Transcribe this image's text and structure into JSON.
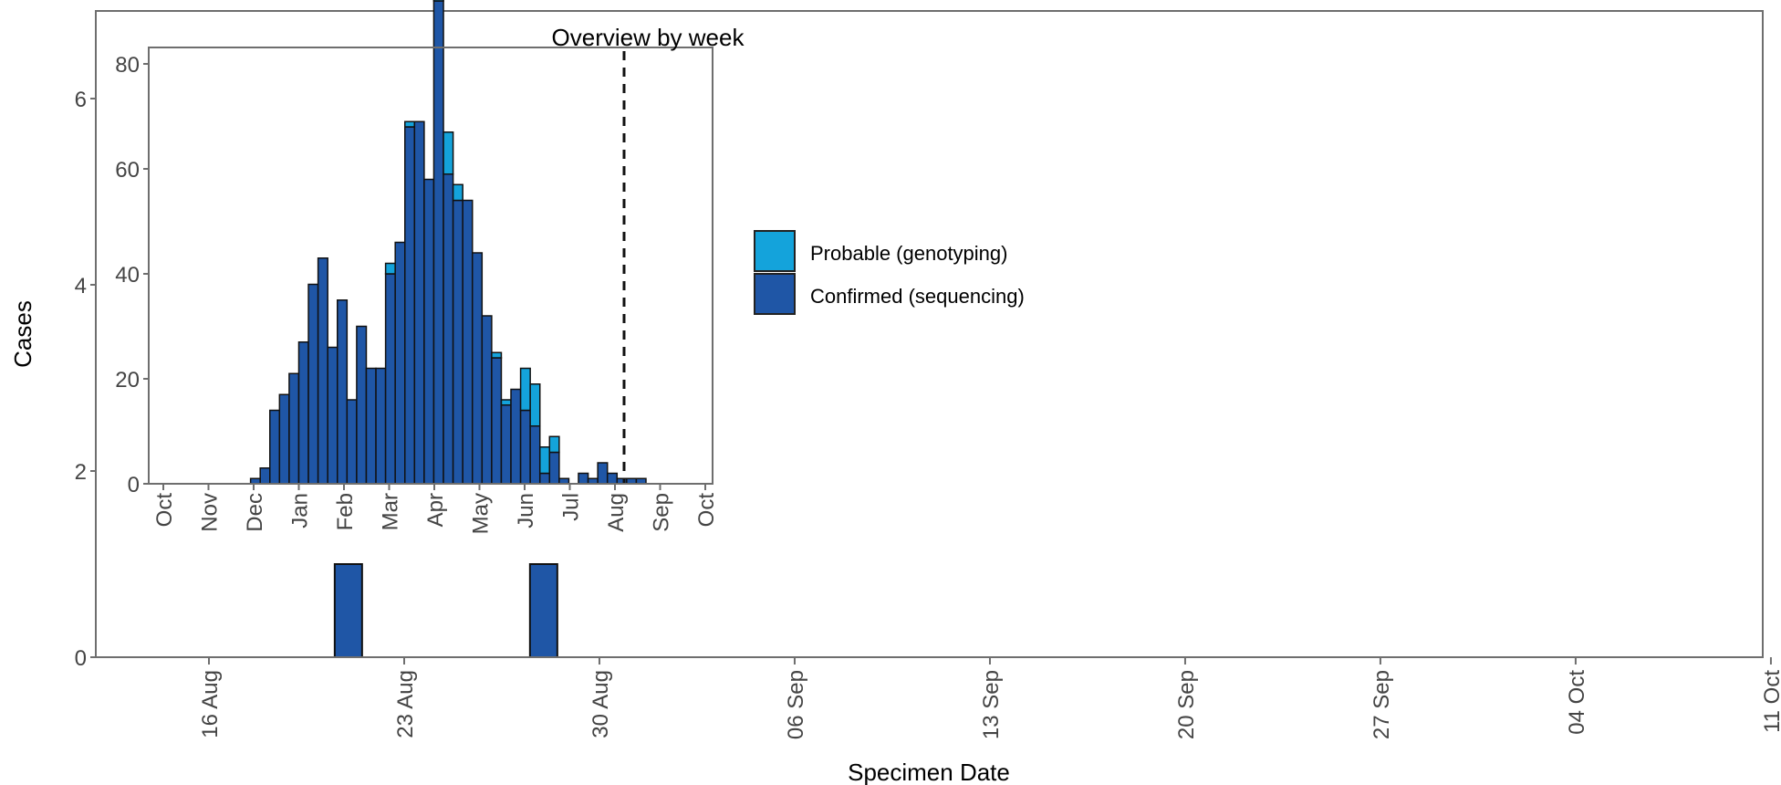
{
  "chart_data": [
    {
      "type": "bar",
      "xlabel": "Specimen Date",
      "ylabel": "Cases",
      "x_ticks": [
        "16 Aug",
        "23 Aug",
        "30 Aug",
        "06 Sep",
        "13 Sep",
        "20 Sep",
        "27 Sep",
        "04 Oct",
        "11 Oct"
      ],
      "y_ticks": [
        "0",
        "2",
        "4",
        "6"
      ],
      "ylim": [
        0,
        7
      ],
      "series": [
        {
          "name": "Confirmed (sequencing)",
          "color": "#1f56a6",
          "bars": [
            {
              "x": "2021-08-21",
              "value": 1
            },
            {
              "x": "2021-08-28",
              "value": 1
            }
          ]
        }
      ],
      "legend": {
        "placement": "right",
        "items": [
          {
            "label": "Probable (genotyping)",
            "color": "#14a3db"
          },
          {
            "label": "Confirmed (sequencing)",
            "color": "#1f56a6"
          }
        ]
      }
    },
    {
      "type": "bar",
      "title": "Overview by week",
      "stacked": true,
      "x_ticks": [
        "Oct",
        "Nov",
        "Dec",
        "Jan",
        "Feb",
        "Mar",
        "Apr",
        "May",
        "Jun",
        "Jul",
        "Aug",
        "Sep",
        "Oct"
      ],
      "y_ticks": [
        "0",
        "20",
        "40",
        "60",
        "80"
      ],
      "ylim": [
        0,
        80
      ],
      "reference_line": "dashed vertical line in mid August",
      "confirmed": [
        0,
        0,
        0,
        0,
        0,
        0,
        0,
        0,
        0,
        1,
        3,
        14,
        17,
        21,
        27,
        38,
        43,
        26,
        35,
        16,
        30,
        22,
        22,
        40,
        46,
        68,
        69,
        58,
        92,
        59,
        54,
        54,
        44,
        32,
        24,
        15,
        18,
        14,
        11,
        2,
        6,
        1,
        0,
        2,
        1,
        4,
        2,
        1,
        1,
        1,
        0,
        0,
        0,
        0,
        0
      ],
      "probable": [
        0,
        0,
        0,
        0,
        0,
        0,
        0,
        0,
        0,
        0,
        0,
        0,
        0,
        0,
        0,
        0,
        0,
        0,
        0,
        0,
        0,
        0,
        0,
        2,
        0,
        1,
        0,
        0,
        6,
        8,
        3,
        0,
        0,
        0,
        1,
        1,
        0,
        8,
        8,
        5,
        3,
        0,
        0,
        0,
        0,
        0,
        0,
        0,
        0,
        0,
        0,
        0,
        0,
        0,
        0
      ],
      "series": [
        {
          "name": "Confirmed (sequencing)",
          "color": "#1f56a6"
        },
        {
          "name": "Probable (genotyping)",
          "color": "#14a3db"
        }
      ]
    }
  ]
}
